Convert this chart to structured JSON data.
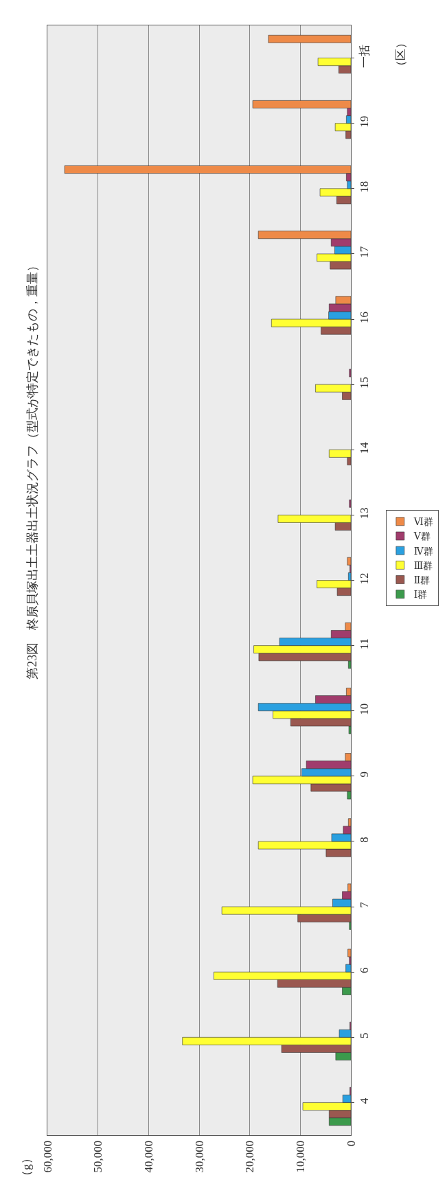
{
  "chart_data": {
    "type": "bar",
    "orientation": "horizontal",
    "title": "第23図　柊原貝塚出土土器出土状況グラフ（型式が特定できたもの，重量）",
    "ylabel": "（区）",
    "annotations": [
      "（g）"
    ],
    "categories": [
      "一括",
      "19",
      "18",
      "17",
      "16",
      "15",
      "14",
      "13",
      "12",
      "11",
      "10",
      "9",
      "8",
      "7",
      "6",
      "5",
      "4"
    ],
    "series": [
      {
        "name": "Ⅰ群",
        "color": "#3c9a4c",
        "values": [
          null,
          null,
          null,
          null,
          null,
          null,
          null,
          null,
          null,
          500,
          400,
          700,
          null,
          300,
          1700,
          3000,
          4300
        ]
      },
      {
        "name": "Ⅱ群",
        "color": "#9a5850",
        "values": [
          2400,
          1000,
          2800,
          4100,
          5900,
          1700,
          700,
          3100,
          2700,
          18200,
          11900,
          7900,
          4900,
          10500,
          14500,
          13700,
          4300
        ]
      },
      {
        "name": "Ⅲ群",
        "color": "#ffff33",
        "values": [
          6500,
          3100,
          6100,
          6700,
          15700,
          7000,
          4300,
          14400,
          6700,
          19200,
          15400,
          19400,
          18300,
          25500,
          27100,
          33300,
          9500
        ]
      },
      {
        "name": "Ⅳ群",
        "color": "#2aa0e0",
        "values": [
          null,
          900,
          700,
          3200,
          4400,
          null,
          null,
          null,
          500,
          14100,
          18300,
          9700,
          3800,
          3600,
          1000,
          2300,
          1600
        ]
      },
      {
        "name": "Ⅴ群",
        "color": "#a03c6c",
        "values": [
          null,
          700,
          900,
          3900,
          4300,
          300,
          null,
          300,
          200,
          3900,
          7000,
          8800,
          1500,
          1700,
          300,
          200,
          200
        ]
      },
      {
        "name": "Ⅵ群",
        "color": "#ee8a48",
        "values": [
          16300,
          19400,
          56600,
          18300,
          3000,
          null,
          null,
          null,
          700,
          1100,
          900,
          1100,
          500,
          600,
          600,
          null,
          null
        ]
      }
    ],
    "xlim": [
      60000,
      0
    ],
    "xticks": [
      {
        "value": 60000,
        "label": "60,000"
      },
      {
        "value": 50000,
        "label": "50,000"
      },
      {
        "value": 40000,
        "label": "40,000"
      },
      {
        "value": 30000,
        "label": "30,000"
      },
      {
        "value": 20000,
        "label": "20,000"
      },
      {
        "value": 10000,
        "label": "10,000"
      },
      0
    ],
    "grid": "x",
    "legend": "right"
  }
}
